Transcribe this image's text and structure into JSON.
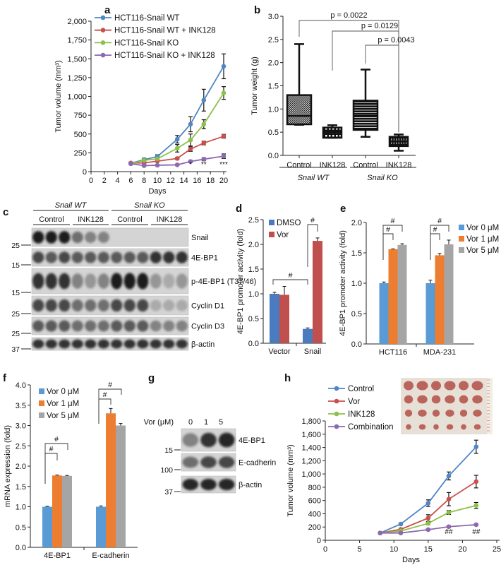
{
  "panel_labels": [
    "a",
    "b",
    "c",
    "d",
    "e",
    "f",
    "g",
    "h"
  ],
  "chart_data": [
    {
      "id": "a",
      "type": "line",
      "xlabel": "Days",
      "ylabel": "Tumor volume (mm³)",
      "xlim": [
        0,
        20
      ],
      "ylim": [
        0,
        2000
      ],
      "x_ticks": [
        0,
        2,
        4,
        6,
        8,
        10,
        12,
        14,
        16,
        18,
        20
      ],
      "x_tick_labels": [
        "0",
        "2",
        "4",
        "6",
        "8",
        "10",
        "12",
        "14",
        "16",
        "18",
        "20"
      ],
      "y_ticks": [
        0,
        250,
        500,
        750,
        1000,
        1250,
        1500,
        1750,
        2000
      ],
      "y_tick_labels": [
        "0",
        "250",
        "500",
        "750",
        "1,000",
        "1,250",
        "1,500",
        "1,750",
        "2,000"
      ],
      "x": [
        6,
        8,
        10,
        13,
        15,
        17,
        20
      ],
      "series": [
        {
          "name": "HCT116-Snail WT",
          "color": "#4f86c6",
          "values": [
            110,
            160,
            200,
            430,
            630,
            950,
            1400
          ],
          "err": [
            15,
            20,
            25,
            50,
            100,
            145,
            165
          ]
        },
        {
          "name": "HCT116-Snail WT + INK128",
          "color": "#c9504a",
          "values": [
            115,
            115,
            140,
            175,
            300,
            380,
            470
          ],
          "err": [
            10,
            10,
            10,
            15,
            30,
            25,
            25
          ]
        },
        {
          "name": "HCT116-Snail KO",
          "color": "#8dc04a",
          "values": [
            105,
            150,
            170,
            310,
            420,
            630,
            1045
          ],
          "err": [
            10,
            15,
            15,
            50,
            80,
            60,
            85
          ]
        },
        {
          "name": "HCT116-Snail KO + INK128",
          "color": "#8c69b0",
          "values": [
            105,
            80,
            85,
            90,
            135,
            165,
            205
          ],
          "err": [
            10,
            10,
            10,
            10,
            15,
            20,
            30
          ]
        }
      ],
      "annotations": [
        {
          "x": 15,
          "text": "*"
        },
        {
          "x": 17,
          "text": "**"
        },
        {
          "x": 20,
          "text": "***"
        }
      ],
      "legend": "top-left"
    },
    {
      "id": "b",
      "type": "box",
      "ylabel": "Tumor weight (g)",
      "ylim": [
        0,
        3
      ],
      "y_ticks": [
        0,
        0.5,
        1,
        1.5,
        2,
        2.5,
        3
      ],
      "y_tick_labels": [
        "0.0",
        "0.5",
        "1.0",
        "1.5",
        "2.0",
        "2.5",
        "3.0"
      ],
      "categories": [
        "Control",
        "INK128",
        "Control",
        "INK128"
      ],
      "groups": [
        "Snail WT",
        "Snail KO"
      ],
      "boxes": [
        {
          "min": 0.66,
          "q1": 0.67,
          "median": 0.85,
          "q3": 1.3,
          "max": 2.4
        },
        {
          "min": 0.38,
          "q1": 0.38,
          "median": 0.5,
          "q3": 0.6,
          "max": 0.65
        },
        {
          "min": 0.4,
          "q1": 0.55,
          "median": 0.85,
          "q3": 1.18,
          "max": 1.85
        },
        {
          "min": 0.1,
          "q1": 0.2,
          "median": 0.3,
          "q3": 0.4,
          "max": 0.45
        }
      ],
      "comparisons": [
        {
          "from": 0,
          "to": 3,
          "text": "p = 0.0022"
        },
        {
          "from": 1,
          "to": 3,
          "text": "p = 0.0129"
        },
        {
          "from": 2,
          "to": 3,
          "text": "p = 0.0043"
        }
      ]
    },
    {
      "id": "d",
      "type": "bar",
      "ylabel": "4E-BP1 promoter activity (fold)",
      "ylim": [
        0,
        2.5
      ],
      "y_ticks": [
        0,
        0.5,
        1,
        1.5,
        2,
        2.5
      ],
      "y_tick_labels": [
        "0.0",
        "0.5",
        "1.0",
        "1.5",
        "2.0",
        "2.5"
      ],
      "categories": [
        "Vector",
        "Snail"
      ],
      "series": [
        {
          "name": "DMSO",
          "color": "#4a7bbf",
          "values": [
            1.0,
            0.29
          ],
          "err": [
            0.03,
            0.02
          ]
        },
        {
          "name": "Vor",
          "color": "#c0504d",
          "values": [
            0.98,
            2.07
          ],
          "err": [
            0.17,
            0.06
          ]
        }
      ],
      "annotations": [
        "#",
        "#"
      ],
      "legend": "top-left"
    },
    {
      "id": "e",
      "type": "bar",
      "ylabel": "4E-BP1 promoter activity (fold)",
      "ylim": [
        0,
        2
      ],
      "y_ticks": [
        0,
        0.5,
        1,
        1.5,
        2
      ],
      "y_tick_labels": [
        "0.0",
        "0.5",
        "1.0",
        "1.5",
        "2.0"
      ],
      "categories": [
        "HCT116",
        "MDA-231"
      ],
      "series": [
        {
          "name": "Vor 0 μM",
          "color": "#5b9bd5",
          "values": [
            1.0,
            1.0
          ],
          "err": [
            0.02,
            0.05
          ]
        },
        {
          "name": "Vor 1 μM",
          "color": "#ed7d31",
          "values": [
            1.56,
            1.46
          ],
          "err": [
            0.005,
            0.03
          ]
        },
        {
          "name": "Vor 5 μM",
          "color": "#a5a5a5",
          "values": [
            1.63,
            1.64
          ],
          "err": [
            0.02,
            0.07
          ]
        }
      ],
      "annotations": [
        "#",
        "#",
        "#",
        "#"
      ],
      "legend": "top-right"
    },
    {
      "id": "f",
      "type": "bar",
      "ylabel": "mRNA expression (fold)",
      "ylim": [
        0,
        4
      ],
      "y_ticks": [
        0,
        0.5,
        1,
        1.5,
        2,
        2.5,
        3,
        3.5,
        4
      ],
      "y_tick_labels": [
        "0.0",
        "0.5",
        "1.0",
        "1.5",
        "2.0",
        "2.5",
        "3.0",
        "3.5",
        "4.0"
      ],
      "categories": [
        "4E-BP1",
        "E-cadherin"
      ],
      "series": [
        {
          "name": "Vor 0 μM",
          "color": "#5b9bd5",
          "values": [
            1.0,
            1.0
          ],
          "err": [
            0.01,
            0.02
          ]
        },
        {
          "name": "Vor 1 μM",
          "color": "#ed7d31",
          "values": [
            1.77,
            3.3
          ],
          "err": [
            0.01,
            0.12
          ]
        },
        {
          "name": "Vor 5 μM",
          "color": "#a5a5a5",
          "values": [
            1.76,
            3.0
          ],
          "err": [
            0.01,
            0.05
          ]
        }
      ],
      "annotations": [
        "#",
        "#",
        "#",
        "#"
      ],
      "legend": "top-left"
    },
    {
      "id": "h",
      "type": "line",
      "xlabel": "Days",
      "ylabel": "Tumor volume (mm³)",
      "xlim": [
        0,
        25
      ],
      "ylim": [
        0,
        1800
      ],
      "x_ticks": [
        0,
        5,
        10,
        15,
        20,
        25
      ],
      "x_tick_labels": [
        "0",
        "5",
        "10",
        "15",
        "20",
        "25"
      ],
      "y_ticks": [
        0,
        200,
        400,
        600,
        800,
        1000,
        1200,
        1400,
        1600,
        1800
      ],
      "y_tick_labels": [
        "0",
        "200",
        "400",
        "600",
        "800",
        "1,000",
        "1,200",
        "1,400",
        "1,600",
        "1,800"
      ],
      "x": [
        8,
        11,
        15,
        18,
        22
      ],
      "series": [
        {
          "name": "Control",
          "color": "#4f86c6",
          "values": [
            110,
            245,
            560,
            970,
            1410
          ],
          "err": [
            10,
            15,
            50,
            60,
            100
          ]
        },
        {
          "name": "Vor",
          "color": "#c9504a",
          "values": [
            110,
            165,
            335,
            620,
            885
          ],
          "err": [
            10,
            15,
            50,
            100,
            95
          ]
        },
        {
          "name": "INK128",
          "color": "#8dc04a",
          "values": [
            110,
            140,
            255,
            420,
            525
          ],
          "err": [
            10,
            10,
            20,
            30,
            45
          ]
        },
        {
          "name": "Combination",
          "color": "#8c69b0",
          "values": [
            110,
            110,
            160,
            205,
            235
          ],
          "err": [
            10,
            10,
            15,
            15,
            15
          ]
        }
      ],
      "annotations": [
        {
          "x": 18,
          "text": "##"
        },
        {
          "x": 22,
          "text": "##"
        }
      ],
      "legend": "top-left"
    }
  ],
  "blot_c": {
    "groups": [
      "Snail WT",
      "Snail KO"
    ],
    "treatments": [
      "Control",
      "INK128",
      "Control",
      "INK128"
    ],
    "rows": [
      {
        "label": "Snail",
        "marker": "25",
        "levels": [
          1,
          1,
          1,
          0.6,
          0.5,
          0.5,
          0,
          0,
          0,
          0,
          0,
          0
        ]
      },
      {
        "label": "4E-BP1",
        "marker": "15",
        "levels": [
          0.8,
          0.7,
          0.8,
          0.7,
          0.7,
          0.7,
          0.7,
          0.7,
          0.7,
          0.9,
          0.9,
          0.9
        ]
      },
      {
        "label": "p-4E-BP1 (T37/46)",
        "marker": "15",
        "levels": [
          0.9,
          0.9,
          0.9,
          0.5,
          0.4,
          0.5,
          1,
          1,
          1,
          0.4,
          0.3,
          0.4
        ]
      },
      {
        "label": "Cyclin D1",
        "marker": "25",
        "levels": [
          0.8,
          0.8,
          0.8,
          0.6,
          0.6,
          0.6,
          0.8,
          0.8,
          0.8,
          0.3,
          0.3,
          0.3
        ]
      },
      {
        "label": "Cyclin D3",
        "marker": "25",
        "levels": [
          0.7,
          0.7,
          0.7,
          0.6,
          0.6,
          0.6,
          0.7,
          0.7,
          0.7,
          0.5,
          0.5,
          0.5
        ]
      },
      {
        "label": "β-actin",
        "marker": "37",
        "levels": [
          0.9,
          0.9,
          0.9,
          0.9,
          0.9,
          0.9,
          0.9,
          0.9,
          0.9,
          0.9,
          0.9,
          0.9
        ]
      }
    ]
  },
  "blot_g": {
    "header": "Vor (μM)",
    "lanes": [
      "0",
      "1",
      "5"
    ],
    "rows": [
      {
        "label": "4E-BP1",
        "marker": "15",
        "levels": [
          0.5,
          0.9,
          0.95
        ]
      },
      {
        "label": "E-cadherin",
        "marker": "100",
        "levels": [
          0.6,
          0.8,
          0.8
        ]
      },
      {
        "label": "β-actin",
        "marker": "37",
        "levels": [
          0.95,
          0.95,
          0.95
        ]
      }
    ]
  },
  "photo_h": {
    "rows": 4,
    "cols": 6,
    "tumor_color": "#b5574f",
    "background": "#e6e0d6"
  }
}
